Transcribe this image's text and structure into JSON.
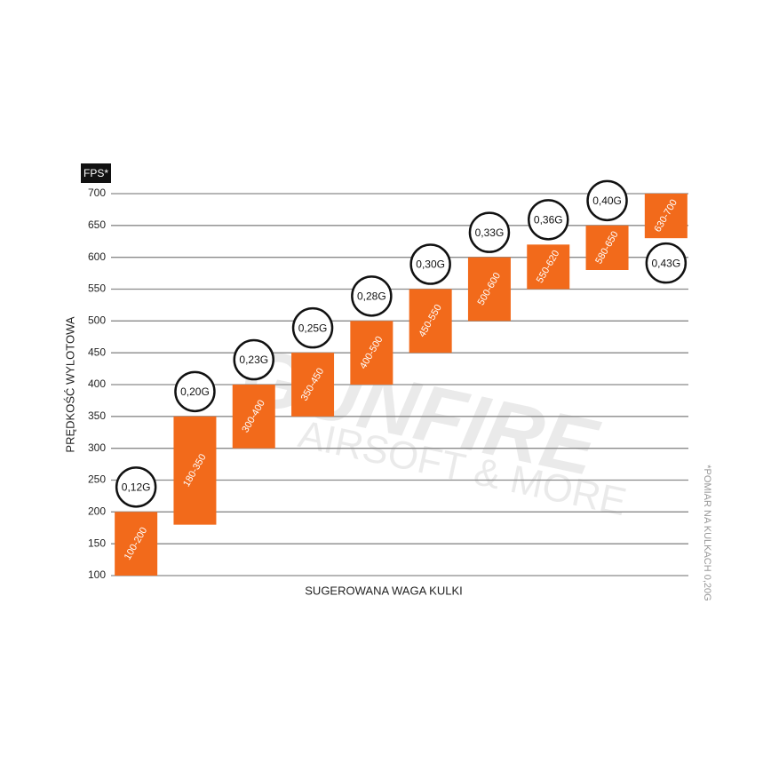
{
  "chart_data": {
    "type": "floating-bar",
    "unit_label": "FPS*",
    "ylabel": "PRĘDKOŚĆ WYLOTOWA",
    "xlabel": "SUGEROWANA WAGA KULKI",
    "footnote": "*POMIAR NA KULKACH 0,20G",
    "watermark": [
      "GUNFIRE",
      "AIRSOFT & MORE"
    ],
    "categories": [
      "0,12G",
      "0,20G",
      "0,23G",
      "0,25G",
      "0,28G",
      "0,30G",
      "0,33G",
      "0,36G",
      "0,40G",
      "0,43G"
    ],
    "low": [
      100,
      180,
      300,
      350,
      400,
      450,
      500,
      550,
      580,
      630
    ],
    "high": [
      200,
      350,
      400,
      450,
      500,
      550,
      600,
      620,
      650,
      700
    ],
    "value_labels": [
      "100-200",
      "180-350",
      "300-400",
      "350-450",
      "400-500",
      "450-550",
      "500-600",
      "550-620",
      "580-650",
      "630-700"
    ],
    "color": "#f26a1b",
    "ylim": [
      100,
      700
    ],
    "yticks": [
      100,
      150,
      200,
      250,
      300,
      350,
      400,
      450,
      500,
      550,
      600,
      650,
      700
    ],
    "grid": true
  }
}
